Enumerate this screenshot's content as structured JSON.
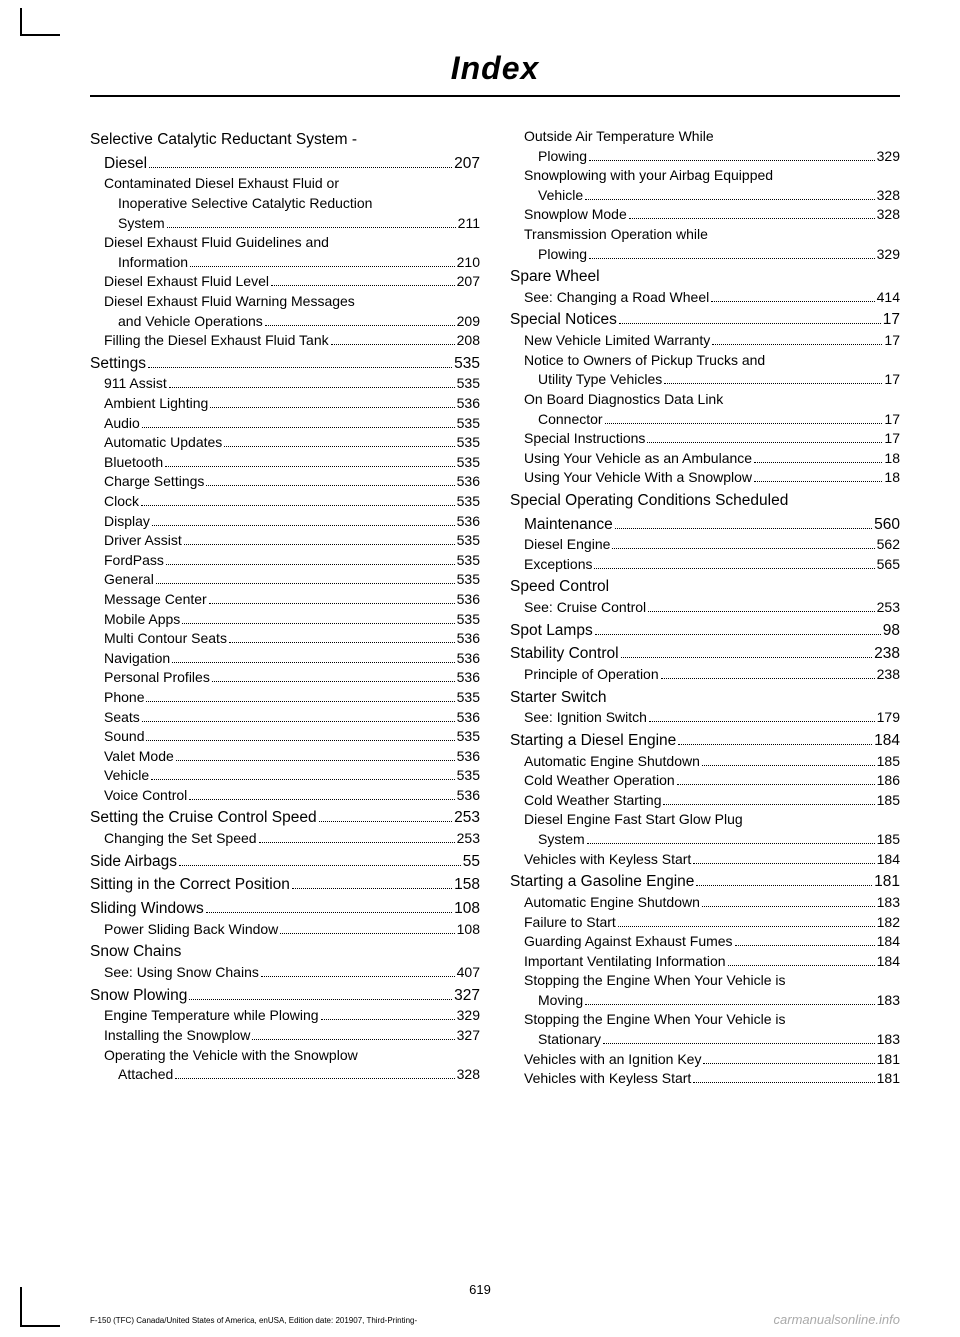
{
  "header": {
    "title": "Index"
  },
  "left_column": [
    {
      "level": 1,
      "text": "Selective Catalytic Reductant System -",
      "page": "",
      "continuation": true
    },
    {
      "level": 1,
      "text": "Diesel",
      "page": "207",
      "indent": 14
    },
    {
      "level": 2,
      "text": "Contaminated Diesel Exhaust Fluid or",
      "page": "",
      "continuation": true
    },
    {
      "level": 3,
      "text": "Inoperative Selective Catalytic Reduction",
      "page": "",
      "continuation": true
    },
    {
      "level": 3,
      "text": "System",
      "page": "211"
    },
    {
      "level": 2,
      "text": "Diesel Exhaust Fluid Guidelines and",
      "page": "",
      "continuation": true
    },
    {
      "level": 3,
      "text": "Information",
      "page": "210"
    },
    {
      "level": 2,
      "text": "Diesel Exhaust Fluid Level",
      "page": "207"
    },
    {
      "level": 2,
      "text": "Diesel Exhaust Fluid Warning Messages",
      "page": "",
      "continuation": true
    },
    {
      "level": 3,
      "text": "and Vehicle Operations",
      "page": "209"
    },
    {
      "level": 2,
      "text": "Filling the Diesel Exhaust Fluid Tank",
      "page": "208"
    },
    {
      "level": 1,
      "text": "Settings",
      "page": "535"
    },
    {
      "level": 2,
      "text": "911 Assist",
      "page": "535"
    },
    {
      "level": 2,
      "text": "Ambient Lighting",
      "page": "536"
    },
    {
      "level": 2,
      "text": "Audio",
      "page": "535"
    },
    {
      "level": 2,
      "text": "Automatic Updates",
      "page": "535"
    },
    {
      "level": 2,
      "text": "Bluetooth",
      "page": "535"
    },
    {
      "level": 2,
      "text": "Charge Settings",
      "page": "536"
    },
    {
      "level": 2,
      "text": "Clock",
      "page": "535"
    },
    {
      "level": 2,
      "text": "Display",
      "page": "536"
    },
    {
      "level": 2,
      "text": "Driver Assist",
      "page": "535"
    },
    {
      "level": 2,
      "text": "FordPass",
      "page": "535"
    },
    {
      "level": 2,
      "text": "General",
      "page": "535"
    },
    {
      "level": 2,
      "text": "Message Center",
      "page": "536"
    },
    {
      "level": 2,
      "text": "Mobile Apps",
      "page": "535"
    },
    {
      "level": 2,
      "text": "Multi Contour Seats",
      "page": "536"
    },
    {
      "level": 2,
      "text": "Navigation",
      "page": "536"
    },
    {
      "level": 2,
      "text": "Personal Profiles",
      "page": "536"
    },
    {
      "level": 2,
      "text": "Phone",
      "page": "535"
    },
    {
      "level": 2,
      "text": "Seats",
      "page": "536"
    },
    {
      "level": 2,
      "text": "Sound",
      "page": "535"
    },
    {
      "level": 2,
      "text": "Valet Mode",
      "page": "536"
    },
    {
      "level": 2,
      "text": "Vehicle",
      "page": "535"
    },
    {
      "level": 2,
      "text": "Voice Control",
      "page": "536"
    },
    {
      "level": 1,
      "text": "Setting the Cruise Control Speed",
      "page": "253"
    },
    {
      "level": 2,
      "text": "Changing the Set Speed",
      "page": "253"
    },
    {
      "level": 1,
      "text": "Side Airbags",
      "page": "55"
    },
    {
      "level": 1,
      "text": "Sitting in the Correct Position",
      "page": "158"
    },
    {
      "level": 1,
      "text": "Sliding Windows",
      "page": "108"
    },
    {
      "level": 2,
      "text": "Power Sliding Back Window",
      "page": "108"
    },
    {
      "level": 1,
      "text": "Snow Chains",
      "page": "",
      "heading": true
    },
    {
      "level": 2,
      "text": "See: Using Snow Chains",
      "page": "407"
    },
    {
      "level": 1,
      "text": "Snow Plowing",
      "page": "327"
    },
    {
      "level": 2,
      "text": "Engine Temperature while Plowing",
      "page": "329"
    },
    {
      "level": 2,
      "text": "Installing the Snowplow",
      "page": "327"
    },
    {
      "level": 2,
      "text": "Operating the Vehicle with the Snowplow",
      "page": "",
      "continuation": true
    },
    {
      "level": 3,
      "text": "Attached",
      "page": "328"
    }
  ],
  "right_column": [
    {
      "level": 2,
      "text": "Outside Air Temperature While",
      "page": "",
      "continuation": true
    },
    {
      "level": 3,
      "text": "Plowing",
      "page": "329"
    },
    {
      "level": 2,
      "text": "Snowplowing with your Airbag Equipped",
      "page": "",
      "continuation": true
    },
    {
      "level": 3,
      "text": "Vehicle",
      "page": "328"
    },
    {
      "level": 2,
      "text": "Snowplow Mode",
      "page": "328"
    },
    {
      "level": 2,
      "text": "Transmission Operation while",
      "page": "",
      "continuation": true
    },
    {
      "level": 3,
      "text": "Plowing",
      "page": "329"
    },
    {
      "level": 1,
      "text": "Spare Wheel",
      "page": "",
      "heading": true
    },
    {
      "level": 2,
      "text": "See: Changing a Road Wheel",
      "page": "414"
    },
    {
      "level": 1,
      "text": "Special Notices",
      "page": "17"
    },
    {
      "level": 2,
      "text": "New Vehicle Limited Warranty",
      "page": "17"
    },
    {
      "level": 2,
      "text": "Notice to Owners of Pickup Trucks and",
      "page": "",
      "continuation": true
    },
    {
      "level": 3,
      "text": "Utility Type Vehicles",
      "page": "17"
    },
    {
      "level": 2,
      "text": "On Board Diagnostics Data Link",
      "page": "",
      "continuation": true
    },
    {
      "level": 3,
      "text": "Connector",
      "page": "17"
    },
    {
      "level": 2,
      "text": "Special Instructions",
      "page": "17"
    },
    {
      "level": 2,
      "text": "Using Your Vehicle as an Ambulance",
      "page": "18"
    },
    {
      "level": 2,
      "text": "Using Your Vehicle With a Snowplow",
      "page": "18"
    },
    {
      "level": 1,
      "text": "Special Operating Conditions Scheduled",
      "page": "",
      "continuation": true
    },
    {
      "level": 1,
      "text": "Maintenance",
      "page": "560",
      "indent": 14
    },
    {
      "level": 2,
      "text": "Diesel Engine",
      "page": "562"
    },
    {
      "level": 2,
      "text": "Exceptions",
      "page": "565"
    },
    {
      "level": 1,
      "text": "Speed Control",
      "page": "",
      "heading": true
    },
    {
      "level": 2,
      "text": "See: Cruise Control",
      "page": "253"
    },
    {
      "level": 1,
      "text": "Spot Lamps",
      "page": "98"
    },
    {
      "level": 1,
      "text": "Stability Control",
      "page": "238"
    },
    {
      "level": 2,
      "text": "Principle of Operation",
      "page": "238"
    },
    {
      "level": 1,
      "text": "Starter Switch",
      "page": "",
      "heading": true
    },
    {
      "level": 2,
      "text": "See: Ignition Switch",
      "page": "179"
    },
    {
      "level": 1,
      "text": "Starting a Diesel Engine",
      "page": "184"
    },
    {
      "level": 2,
      "text": "Automatic Engine Shutdown",
      "page": "185"
    },
    {
      "level": 2,
      "text": "Cold Weather Operation",
      "page": "186"
    },
    {
      "level": 2,
      "text": "Cold Weather Starting",
      "page": "185"
    },
    {
      "level": 2,
      "text": "Diesel Engine Fast Start Glow Plug",
      "page": "",
      "continuation": true
    },
    {
      "level": 3,
      "text": "System",
      "page": "185"
    },
    {
      "level": 2,
      "text": "Vehicles with Keyless Start",
      "page": "184"
    },
    {
      "level": 1,
      "text": "Starting a Gasoline Engine",
      "page": "181"
    },
    {
      "level": 2,
      "text": "Automatic Engine Shutdown",
      "page": "183"
    },
    {
      "level": 2,
      "text": "Failure to Start",
      "page": "182"
    },
    {
      "level": 2,
      "text": "Guarding Against Exhaust Fumes",
      "page": "184"
    },
    {
      "level": 2,
      "text": "Important Ventilating Information",
      "page": "184"
    },
    {
      "level": 2,
      "text": "Stopping the Engine When Your Vehicle is",
      "page": "",
      "continuation": true
    },
    {
      "level": 3,
      "text": "Moving",
      "page": "183"
    },
    {
      "level": 2,
      "text": "Stopping the Engine When Your Vehicle is",
      "page": "",
      "continuation": true
    },
    {
      "level": 3,
      "text": "Stationary",
      "page": "183"
    },
    {
      "level": 2,
      "text": "Vehicles with an Ignition Key",
      "page": "181"
    },
    {
      "level": 2,
      "text": "Vehicles with Keyless Start",
      "page": "181"
    }
  ],
  "footer": {
    "page_number": "619",
    "bottom_left": "F-150 (TFC) Canada/United States of America, enUSA, Edition date: 201907, Third-Printing-",
    "bottom_right": "carmanualsonline.info"
  }
}
